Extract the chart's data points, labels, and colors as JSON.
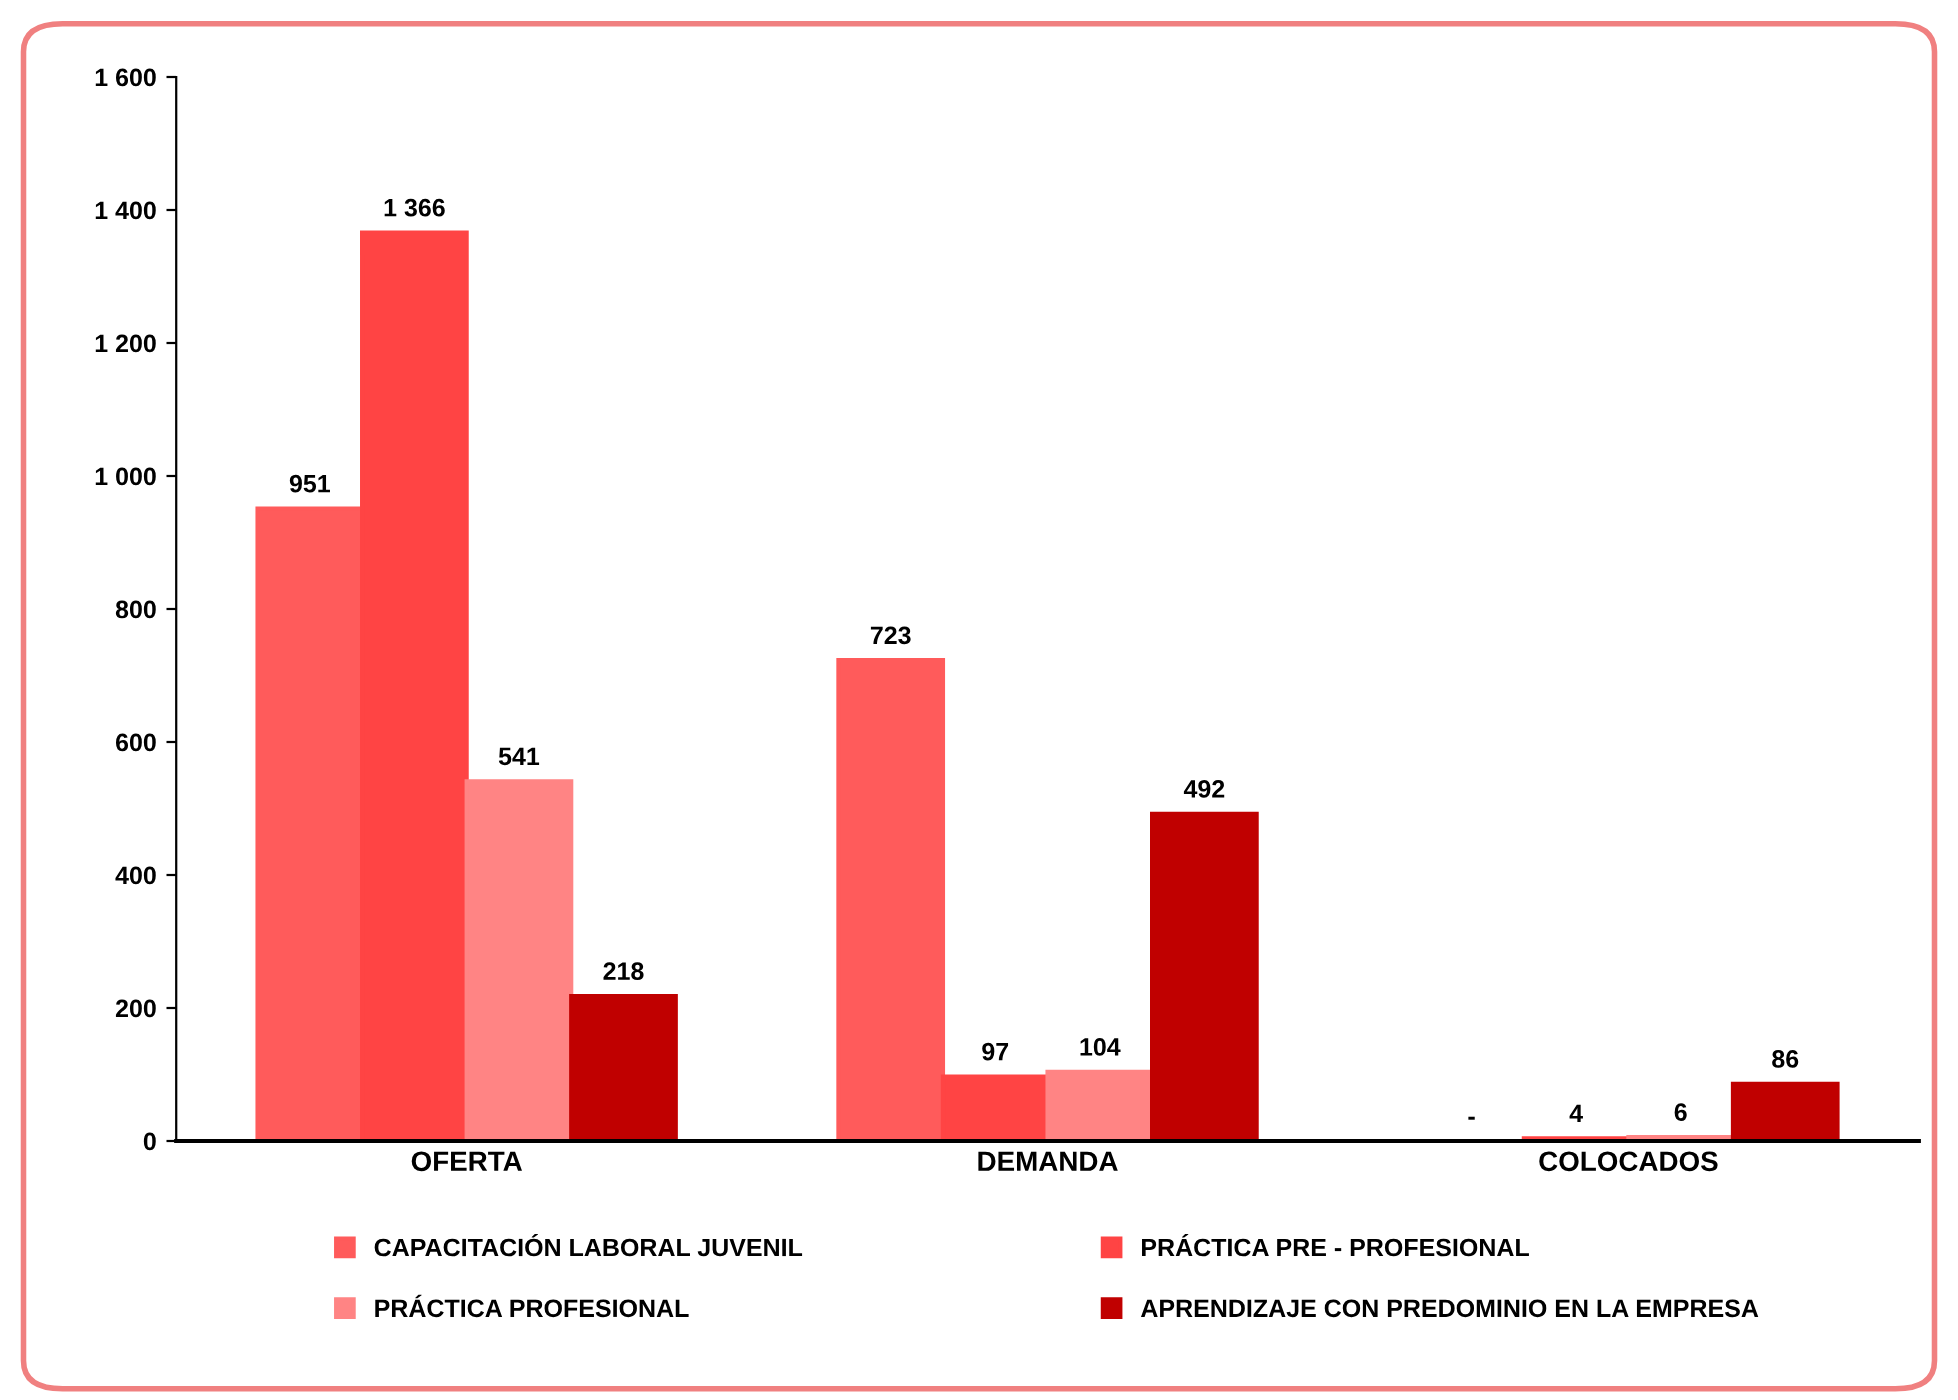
{
  "chart_data": {
    "type": "bar",
    "categories": [
      "OFERTA",
      "DEMANDA",
      "COLOCADOS"
    ],
    "series": [
      {
        "name": "CAPACITACIÓN LABORAL JUVENIL",
        "color": "#ff5b5b",
        "values": [
          951,
          723,
          0
        ],
        "value_labels": [
          "951",
          "723",
          "-"
        ]
      },
      {
        "name": "PRÁCTICA PRE - PROFESIONAL",
        "color": "#ff4444",
        "values": [
          1366,
          97,
          4
        ],
        "value_labels": [
          "1 366",
          "97",
          "4"
        ]
      },
      {
        "name": "PRÁCTICA PROFESIONAL",
        "color": "#ff8484",
        "values": [
          541,
          104,
          6
        ],
        "value_labels": [
          "541",
          "104",
          "6"
        ]
      },
      {
        "name": "APRENDIZAJE CON PREDOMINIO EN LA EMPRESA",
        "color": "#c00000",
        "values": [
          218,
          492,
          86
        ],
        "value_labels": [
          "218",
          "492",
          "86"
        ]
      }
    ],
    "ylim": [
      0,
      1600
    ],
    "yticks": [
      0,
      {
        "value": 200,
        "label": "200"
      },
      {
        "value": 400,
        "label": "400"
      },
      {
        "value": 600,
        "label": "600"
      },
      {
        "value": 800,
        "label": "800"
      },
      {
        "value": 1000,
        "label": "1 000"
      },
      {
        "value": 1200,
        "label": "1 200"
      },
      {
        "value": 1400,
        "label": "1 400"
      },
      {
        "value": 1600,
        "label": "1 600"
      }
    ],
    "grid": false,
    "legend": "bottom"
  }
}
